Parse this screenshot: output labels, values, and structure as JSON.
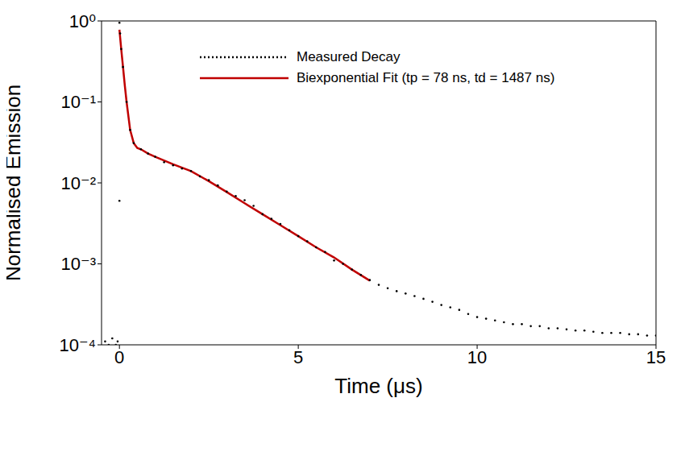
{
  "chart_data": {
    "type": "line",
    "x_label": "Time (μs)",
    "y_label": "Normalised Emission",
    "log": "y",
    "grid": false,
    "legend": "top",
    "xlim": [
      -0.5,
      15
    ],
    "xticks": [
      0,
      5,
      10,
      15
    ],
    "ylim": [
      0.0001,
      1
    ],
    "yticks": [
      {
        "value": 0.0001,
        "label": "10⁻⁴"
      },
      {
        "value": 0.001,
        "label": "10⁻³"
      },
      {
        "value": 0.01,
        "label": "10⁻²"
      },
      {
        "value": 0.1,
        "label": "10⁻¹"
      },
      {
        "value": 1,
        "label": "10⁰"
      }
    ],
    "series": [
      {
        "name": "Measured Decay",
        "type": "scatter",
        "color": "#000000",
        "marker": "dot",
        "line_style": "dotted",
        "x": [
          -0.4,
          -0.3,
          -0.2,
          -0.1,
          -0.05,
          0,
          0,
          0.02,
          0.05,
          0.1,
          0.2,
          0.3,
          0.4,
          0.6,
          0.8,
          1,
          1.25,
          1.5,
          1.75,
          2,
          2.25,
          2.5,
          2.75,
          3,
          3.25,
          3.5,
          3.75,
          4,
          4.25,
          4.5,
          4.75,
          5,
          5.25,
          5.5,
          5.75,
          6,
          6.25,
          6.5,
          6.75,
          7,
          7.25,
          7.5,
          7.75,
          8,
          8.25,
          8.5,
          8.75,
          9,
          9.25,
          9.5,
          9.75,
          10,
          10.25,
          10.5,
          10.75,
          11,
          11.25,
          11.5,
          11.75,
          12,
          12.25,
          12.5,
          12.75,
          13,
          13.25,
          13.5,
          13.75,
          14,
          14.25,
          14.5,
          14.75,
          15
        ],
        "values": [
          0.00011,
          0.0001,
          0.00012,
          0.0001,
          0.00011,
          0.006,
          0.95,
          0.7,
          0.45,
          0.27,
          0.1,
          0.045,
          0.031,
          0.026,
          0.023,
          0.021,
          0.018,
          0.0165,
          0.015,
          0.014,
          0.012,
          0.0108,
          0.0093,
          0.0078,
          0.0069,
          0.0061,
          0.0052,
          0.0041,
          0.0036,
          0.0031,
          0.0026,
          0.0022,
          0.0019,
          0.0016,
          0.0014,
          0.0011,
          0.001,
          0.00085,
          0.00073,
          0.00063,
          0.00055,
          0.0005,
          0.00046,
          0.00043,
          0.0004,
          0.00037,
          0.00034,
          0.00031,
          0.00029,
          0.00027,
          0.00024,
          0.00022,
          0.00021,
          0.0002,
          0.00019,
          0.00018,
          0.00018,
          0.00017,
          0.00017,
          0.00016,
          0.00016,
          0.000155,
          0.00015,
          0.00015,
          0.000145,
          0.00014,
          0.00014,
          0.00014,
          0.000135,
          0.000135,
          0.00013,
          0.00013
        ]
      },
      {
        "name": "Biexponential Fit (tp = 78 ns, td = 1487 ns)",
        "type": "line",
        "color": "#c00000",
        "line_style": "solid",
        "x": [
          0,
          0.05,
          0.1,
          0.15,
          0.2,
          0.3,
          0.4,
          0.5,
          0.6,
          0.8,
          1,
          1.5,
          2,
          2.5,
          3,
          3.5,
          4,
          4.5,
          5,
          5.5,
          6,
          6.5,
          7
        ],
        "values": [
          0.78,
          0.45,
          0.27,
          0.16,
          0.1,
          0.045,
          0.031,
          0.027,
          0.026,
          0.023,
          0.021,
          0.017,
          0.014,
          0.0105,
          0.0077,
          0.0056,
          0.0041,
          0.003,
          0.0022,
          0.0016,
          0.0012,
          0.00085,
          0.00062
        ]
      }
    ]
  }
}
